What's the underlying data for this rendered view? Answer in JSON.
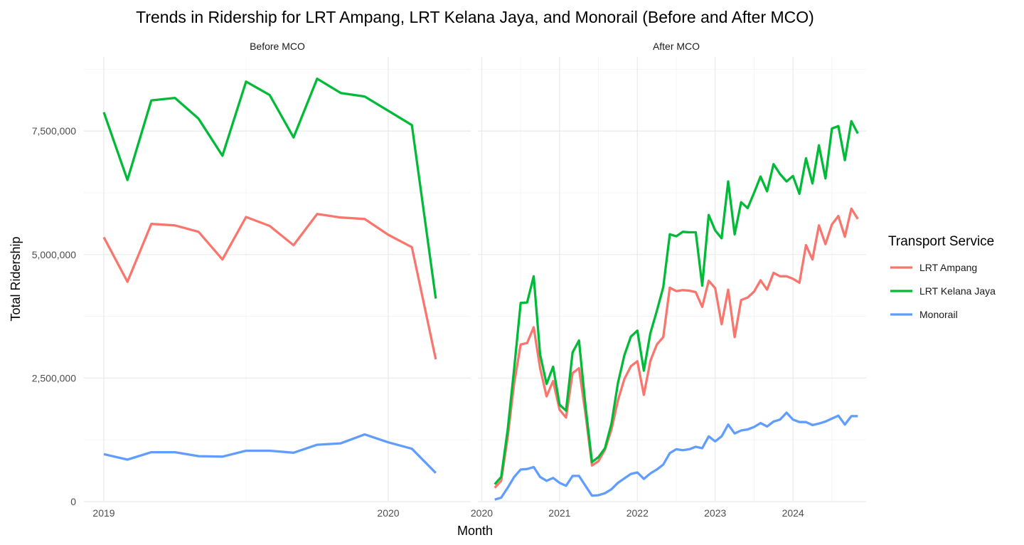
{
  "chart_data": {
    "type": "line",
    "title": "Trends in Ridership for LRT Ampang, LRT Kelana Jaya, and Monorail (Before and After MCO)",
    "xlabel": "Month",
    "ylabel": "Total Ridership",
    "ylim": [
      0,
      9000000
    ],
    "y_ticks": [
      0,
      2500000,
      5000000,
      7500000
    ],
    "y_tick_labels": [
      "0",
      "2,500,000",
      "5,000,000",
      "7,500,000"
    ],
    "grid": true,
    "legend": {
      "title": "Transport Service",
      "position": "right",
      "entries": [
        "LRT Ampang",
        "LRT Kelana Jaya",
        "Monorail"
      ]
    },
    "colors": {
      "LRT Ampang": "#F8766D",
      "LRT Kelana Jaya": "#00BA38",
      "Monorail": "#619CFF"
    },
    "panels": [
      {
        "name": "Before MCO",
        "x_ticks": [
          2019,
          2020
        ],
        "x_tick_labels": [
          "2019",
          "2020"
        ],
        "xlim": [
          2018.93,
          2020.29
        ],
        "x": [
          2019.0,
          2019.083,
          2019.167,
          2019.25,
          2019.333,
          2019.417,
          2019.5,
          2019.583,
          2019.667,
          2019.75,
          2019.833,
          2019.917,
          2020.0,
          2020.083,
          2020.167
        ],
        "series": [
          {
            "name": "LRT Ampang",
            "values": [
              5350000,
              4450000,
              5620000,
              5590000,
              5460000,
              4900000,
              5760000,
              5580000,
              5190000,
              5820000,
              5750000,
              5720000,
              5400000,
              5150000,
              2880000
            ]
          },
          {
            "name": "LRT Kelana Jaya",
            "values": [
              7880000,
              6510000,
              8120000,
              8170000,
              7750000,
              7000000,
              8500000,
              8230000,
              7370000,
              8560000,
              8270000,
              8200000,
              7910000,
              7620000,
              4110000
            ]
          },
          {
            "name": "Monorail",
            "values": [
              960000,
              850000,
              1000000,
              1000000,
              920000,
              910000,
              1030000,
              1030000,
              990000,
              1150000,
              1180000,
              1360000,
              1200000,
              1070000,
              580000
            ]
          }
        ]
      },
      {
        "name": "After MCO",
        "x_ticks": [
          2020,
          2021,
          2022,
          2023,
          2024
        ],
        "x_tick_labels": [
          "2020",
          "2021",
          "2022",
          "2023",
          "2024"
        ],
        "xlim": [
          2019.95,
          2024.94
        ],
        "x": [
          2020.167,
          2020.25,
          2020.333,
          2020.417,
          2020.5,
          2020.583,
          2020.667,
          2020.75,
          2020.833,
          2020.917,
          2021.0,
          2021.083,
          2021.167,
          2021.25,
          2021.333,
          2021.417,
          2021.5,
          2021.583,
          2021.667,
          2021.75,
          2021.833,
          2021.917,
          2022.0,
          2022.083,
          2022.167,
          2022.25,
          2022.333,
          2022.417,
          2022.5,
          2022.583,
          2022.667,
          2022.75,
          2022.833,
          2022.917,
          2023.0,
          2023.083,
          2023.167,
          2023.25,
          2023.333,
          2023.417,
          2023.5,
          2023.583,
          2023.667,
          2023.75,
          2023.833,
          2023.917,
          2024.0,
          2024.083,
          2024.167,
          2024.25,
          2024.333,
          2024.417,
          2024.5,
          2024.583,
          2024.667,
          2024.75,
          2024.833
        ],
        "series": [
          {
            "name": "LRT Ampang",
            "values": [
              280000,
              420000,
              1300000,
              2400000,
              3180000,
              3210000,
              3530000,
              2700000,
              2130000,
              2440000,
              1860000,
              1700000,
              2600000,
              2700000,
              1780000,
              730000,
              820000,
              1050000,
              1460000,
              2050000,
              2480000,
              2740000,
              2840000,
              2160000,
              2850000,
              3180000,
              3330000,
              4330000,
              4260000,
              4280000,
              4270000,
              4240000,
              3940000,
              4470000,
              4320000,
              3590000,
              4290000,
              3330000,
              4080000,
              4130000,
              4250000,
              4480000,
              4290000,
              4630000,
              4560000,
              4560000,
              4510000,
              4430000,
              5190000,
              4900000,
              5590000,
              5210000,
              5610000,
              5780000,
              5360000,
              5930000,
              5720000
            ]
          },
          {
            "name": "LRT Kelana Jaya",
            "values": [
              350000,
              500000,
              1450000,
              2700000,
              4020000,
              4030000,
              4560000,
              2980000,
              2380000,
              2730000,
              1960000,
              1840000,
              3020000,
              3260000,
              1940000,
              800000,
              900000,
              1080000,
              1580000,
              2400000,
              2960000,
              3340000,
              3460000,
              2650000,
              3410000,
              3860000,
              4340000,
              5410000,
              5370000,
              5460000,
              5450000,
              5450000,
              4370000,
              5800000,
              5490000,
              5330000,
              6480000,
              5410000,
              6060000,
              5940000,
              6250000,
              6580000,
              6280000,
              6830000,
              6630000,
              6480000,
              6590000,
              6230000,
              6950000,
              6440000,
              7210000,
              6540000,
              7550000,
              7600000,
              6910000,
              7700000,
              7450000
            ]
          },
          {
            "name": "Monorail",
            "values": [
              40000,
              80000,
              280000,
              500000,
              650000,
              660000,
              700000,
              500000,
              420000,
              480000,
              380000,
              320000,
              520000,
              520000,
              320000,
              120000,
              130000,
              170000,
              250000,
              380000,
              470000,
              560000,
              590000,
              460000,
              570000,
              650000,
              750000,
              980000,
              1060000,
              1040000,
              1060000,
              1110000,
              1080000,
              1320000,
              1220000,
              1320000,
              1560000,
              1380000,
              1440000,
              1460000,
              1510000,
              1590000,
              1520000,
              1620000,
              1660000,
              1800000,
              1660000,
              1610000,
              1610000,
              1550000,
              1580000,
              1620000,
              1680000,
              1740000,
              1560000,
              1730000,
              1730000
            ]
          }
        ]
      }
    ]
  }
}
